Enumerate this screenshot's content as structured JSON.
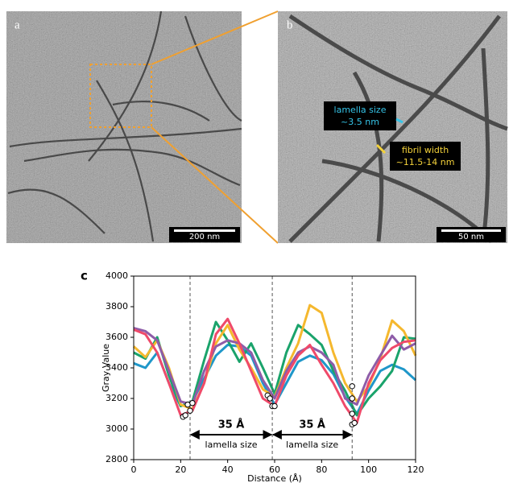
{
  "panels": {
    "a": {
      "label": "a",
      "scale_bar": "200 nm"
    },
    "b": {
      "label": "b",
      "scale_bar": "50 nm",
      "callouts": [
        [
          "lamella size",
          "~3.5 nm"
        ],
        [
          "fibril width",
          "~11.5-14 nm"
        ]
      ]
    }
  },
  "chart_data": {
    "type": "line",
    "panel_label": "c",
    "x_label": "Distance (Å)",
    "y_label": "Gray Value",
    "xlim": [
      0,
      120
    ],
    "xticks": [
      0,
      20,
      40,
      60,
      80,
      100,
      120
    ],
    "ylim": [
      2800,
      4000
    ],
    "yticks": [
      2800,
      3000,
      3200,
      3400,
      3600,
      3800,
      4000
    ],
    "x": [
      0,
      5,
      10,
      15,
      20,
      25,
      30,
      35,
      40,
      45,
      50,
      55,
      60,
      65,
      70,
      75,
      80,
      85,
      90,
      95,
      100,
      105,
      110,
      115,
      120
    ],
    "series": [
      {
        "color": "#1f97c9",
        "values": [
          3430,
          3400,
          3500,
          3300,
          3150,
          3180,
          3330,
          3480,
          3550,
          3540,
          3480,
          3300,
          3160,
          3300,
          3440,
          3480,
          3450,
          3360,
          3210,
          3100,
          3250,
          3380,
          3420,
          3390,
          3320
        ]
      },
      {
        "color": "#1aa36b",
        "values": [
          3500,
          3460,
          3600,
          3350,
          3150,
          3180,
          3450,
          3700,
          3580,
          3440,
          3560,
          3400,
          3230,
          3500,
          3680,
          3620,
          3550,
          3380,
          3250,
          3090,
          3200,
          3280,
          3380,
          3600,
          3590
        ]
      },
      {
        "color": "#f5b82e",
        "values": [
          3540,
          3470,
          3580,
          3400,
          3160,
          3130,
          3300,
          3560,
          3680,
          3520,
          3400,
          3260,
          3210,
          3400,
          3560,
          3810,
          3760,
          3500,
          3300,
          3180,
          3280,
          3460,
          3710,
          3640,
          3480
        ]
      },
      {
        "color": "#8e5ca8",
        "values": [
          3660,
          3640,
          3580,
          3380,
          3180,
          3160,
          3380,
          3540,
          3580,
          3560,
          3500,
          3320,
          3200,
          3380,
          3500,
          3540,
          3500,
          3420,
          3200,
          3160,
          3350,
          3480,
          3610,
          3520,
          3560
        ]
      },
      {
        "color": "#ef4a6a",
        "values": [
          3650,
          3620,
          3500,
          3300,
          3090,
          3120,
          3300,
          3620,
          3720,
          3560,
          3380,
          3200,
          3150,
          3350,
          3480,
          3550,
          3420,
          3300,
          3150,
          3040,
          3300,
          3450,
          3530,
          3570,
          3580
        ]
      }
    ],
    "minima": {
      "x": [
        21,
        22,
        23,
        24,
        25,
        57,
        58,
        59,
        60,
        93,
        93,
        93,
        93,
        94
      ],
      "y": [
        3080,
        3090,
        3160,
        3120,
        3170,
        3220,
        3200,
        3150,
        3150,
        3280,
        3200,
        3100,
        3030,
        3040
      ]
    },
    "vlines": [
      24,
      59,
      93
    ],
    "spans": [
      {
        "label": "35 Å",
        "note": "lamella size"
      },
      {
        "label": "35 Å",
        "note": "lamella size"
      }
    ]
  }
}
